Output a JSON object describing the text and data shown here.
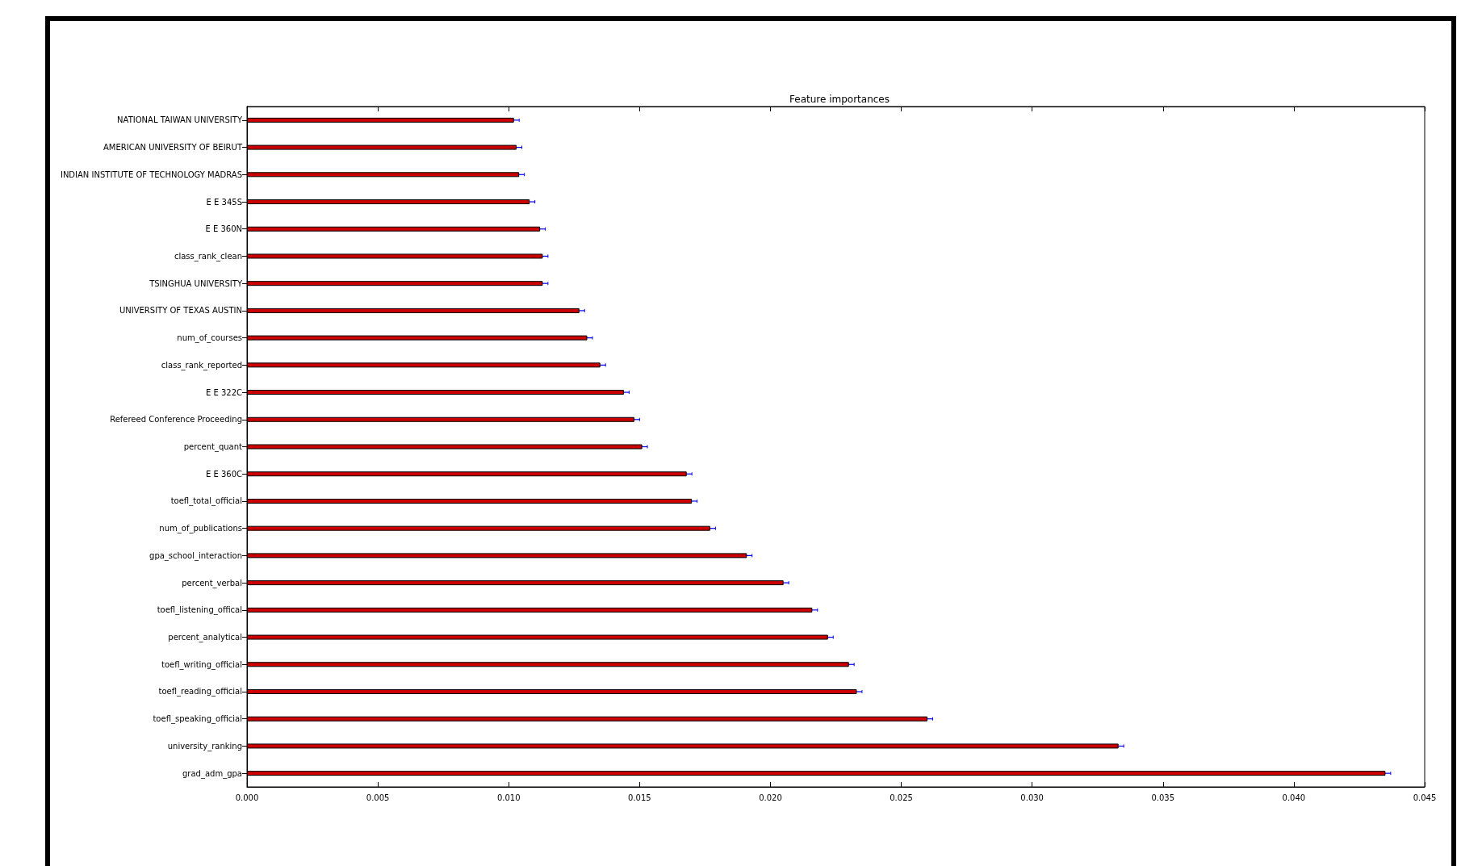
{
  "chart_data": {
    "type": "bar",
    "orientation": "horizontal",
    "title": "Feature importances",
    "categories": [
      "NATIONAL TAIWAN UNIVERSITY",
      "AMERICAN UNIVERSITY OF BEIRUT",
      "INDIAN INSTITUTE OF TECHNOLOGY MADRAS",
      "E E 345S",
      "E E 360N",
      "class_rank_clean",
      "TSINGHUA UNIVERSITY",
      "UNIVERSITY OF TEXAS AUSTIN",
      "num_of_courses",
      "class_rank_reported",
      "E E 322C",
      "Refereed Conference Proceeding",
      "percent_quant",
      "E E 360C",
      "toefl_total_official",
      "num_of_publications",
      "gpa_school_interaction",
      "percent_verbal",
      "toefl_listening_offical",
      "percent_analytical",
      "toefl_writing_official",
      "toefl_reading_official",
      "toefl_speaking_official",
      "university_ranking",
      "grad_adm_gpa"
    ],
    "values": [
      0.0102,
      0.0103,
      0.0104,
      0.0108,
      0.0112,
      0.0113,
      0.0113,
      0.0127,
      0.013,
      0.0135,
      0.0144,
      0.0148,
      0.0151,
      0.0168,
      0.017,
      0.0177,
      0.0191,
      0.0205,
      0.0216,
      0.0222,
      0.023,
      0.0233,
      0.026,
      0.0333,
      0.0435
    ],
    "errors": [
      0.0002,
      0.0002,
      0.0002,
      0.0002,
      0.0002,
      0.0002,
      0.0002,
      0.0002,
      0.0002,
      0.0002,
      0.0002,
      0.0002,
      0.0002,
      0.0002,
      0.0002,
      0.0002,
      0.0002,
      0.0002,
      0.0002,
      0.0002,
      0.0002,
      0.0002,
      0.0002,
      0.0002,
      0.0002
    ],
    "color": "#cc0000",
    "xlim": [
      0,
      0.045
    ],
    "xticks": [
      {
        "value": 0,
        "label": "0.000"
      },
      {
        "value": 0.005,
        "label": "0.005"
      },
      {
        "value": 0.01,
        "label": "0.010"
      },
      {
        "value": 0.015,
        "label": "0.015"
      },
      {
        "value": 0.02,
        "label": "0.020"
      },
      {
        "value": 0.025,
        "label": "0.025"
      },
      {
        "value": 0.03,
        "label": "0.030"
      },
      {
        "value": 0.035,
        "label": "0.035"
      },
      {
        "value": 0.04,
        "label": "0.040"
      },
      {
        "value": 0.045,
        "label": "0.045"
      }
    ],
    "grid": false
  }
}
